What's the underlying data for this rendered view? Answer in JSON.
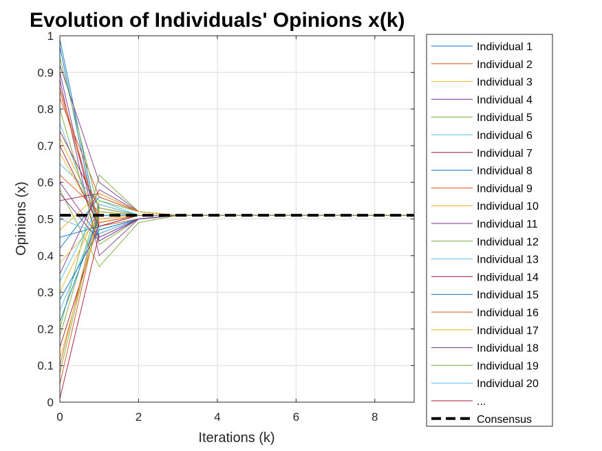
{
  "chart_data": {
    "type": "line",
    "title": "Evolution of Individuals' Opinions x(k)",
    "xlabel": "Iterations (k)",
    "ylabel": "Opinions (x)",
    "xlim": [
      0,
      9
    ],
    "ylim": [
      0,
      1
    ],
    "xticks": [
      "0",
      "2",
      "4",
      "6",
      "8"
    ],
    "yticks": [
      "0",
      "0.1",
      "0.2",
      "0.3",
      "0.4",
      "0.5",
      "0.6",
      "0.7",
      "0.8",
      "0.9",
      "1"
    ],
    "grid": true,
    "legend_position": "outside-right",
    "consensus": {
      "name": "Consensus",
      "value": 0.51,
      "style": "dashed",
      "color": "#000000"
    },
    "legend_more": "...",
    "colors": [
      "#0072BD",
      "#D95319",
      "#EDB120",
      "#7E2F8E",
      "#77AC30",
      "#4DBEEE",
      "#A2142F"
    ],
    "series": [
      {
        "name": "Individual 1",
        "values": [
          0.99,
          0.47,
          0.5,
          0.51,
          0.51,
          0.51,
          0.51,
          0.51,
          0.51,
          0.51
        ]
      },
      {
        "name": "Individual 2",
        "values": [
          0.05,
          0.52,
          0.51,
          0.51,
          0.51,
          0.51,
          0.51,
          0.51,
          0.51,
          0.51
        ]
      },
      {
        "name": "Individual 3",
        "values": [
          0.72,
          0.5,
          0.51,
          0.51,
          0.51,
          0.51,
          0.51,
          0.51,
          0.51,
          0.51
        ]
      },
      {
        "name": "Individual 4",
        "values": [
          0.88,
          0.4,
          0.5,
          0.51,
          0.51,
          0.51,
          0.51,
          0.51,
          0.51,
          0.51
        ]
      },
      {
        "name": "Individual 5",
        "values": [
          0.2,
          0.62,
          0.52,
          0.51,
          0.51,
          0.51,
          0.51,
          0.51,
          0.51,
          0.51
        ]
      },
      {
        "name": "Individual 6",
        "values": [
          0.76,
          0.47,
          0.5,
          0.51,
          0.51,
          0.51,
          0.51,
          0.51,
          0.51,
          0.51
        ]
      },
      {
        "name": "Individual 7",
        "values": [
          0.15,
          0.49,
          0.51,
          0.51,
          0.51,
          0.51,
          0.51,
          0.51,
          0.51,
          0.51
        ]
      },
      {
        "name": "Individual 8",
        "values": [
          0.42,
          0.56,
          0.52,
          0.51,
          0.51,
          0.51,
          0.51,
          0.51,
          0.51,
          0.51
        ]
      },
      {
        "name": "Individual 9",
        "values": [
          0.85,
          0.48,
          0.5,
          0.51,
          0.51,
          0.51,
          0.51,
          0.51,
          0.51,
          0.51
        ]
      },
      {
        "name": "Individual 10",
        "values": [
          0.3,
          0.53,
          0.51,
          0.51,
          0.51,
          0.51,
          0.51,
          0.51,
          0.51,
          0.51
        ]
      },
      {
        "name": "Individual 11",
        "values": [
          0.92,
          0.6,
          0.52,
          0.51,
          0.51,
          0.51,
          0.51,
          0.51,
          0.51,
          0.51
        ]
      },
      {
        "name": "Individual 12",
        "values": [
          0.58,
          0.37,
          0.49,
          0.51,
          0.51,
          0.51,
          0.51,
          0.51,
          0.51,
          0.51
        ]
      },
      {
        "name": "Individual 13",
        "values": [
          0.65,
          0.55,
          0.51,
          0.51,
          0.51,
          0.51,
          0.51,
          0.51,
          0.51,
          0.51
        ]
      },
      {
        "name": "Individual 14",
        "values": [
          0.01,
          0.46,
          0.5,
          0.51,
          0.51,
          0.51,
          0.51,
          0.51,
          0.51,
          0.51
        ]
      },
      {
        "name": "Individual 15",
        "values": [
          0.97,
          0.45,
          0.5,
          0.51,
          0.51,
          0.51,
          0.51,
          0.51,
          0.51,
          0.51
        ]
      },
      {
        "name": "Individual 16",
        "values": [
          0.1,
          0.54,
          0.51,
          0.51,
          0.51,
          0.51,
          0.51,
          0.51,
          0.51,
          0.51
        ]
      },
      {
        "name": "Individual 17",
        "values": [
          0.68,
          0.49,
          0.51,
          0.51,
          0.51,
          0.51,
          0.51,
          0.51,
          0.51,
          0.51
        ]
      },
      {
        "name": "Individual 18",
        "values": [
          0.35,
          0.58,
          0.52,
          0.51,
          0.51,
          0.51,
          0.51,
          0.51,
          0.51,
          0.51
        ]
      },
      {
        "name": "Individual 19",
        "values": [
          0.8,
          0.43,
          0.5,
          0.51,
          0.51,
          0.51,
          0.51,
          0.51,
          0.51,
          0.51
        ]
      },
      {
        "name": "Individual 20",
        "values": [
          0.25,
          0.51,
          0.51,
          0.51,
          0.51,
          0.51,
          0.51,
          0.51,
          0.51,
          0.51
        ]
      },
      {
        "name": "...",
        "values": [
          0.55,
          0.57,
          0.52,
          0.51,
          0.51,
          0.51,
          0.51,
          0.51,
          0.51,
          0.51
        ]
      },
      {
        "values": [
          0.45,
          0.48,
          0.51,
          0.51,
          0.51,
          0.51,
          0.51,
          0.51,
          0.51,
          0.51
        ]
      },
      {
        "values": [
          0.62,
          0.52,
          0.51,
          0.51,
          0.51,
          0.51,
          0.51,
          0.51,
          0.51,
          0.51
        ]
      },
      {
        "values": [
          0.38,
          0.5,
          0.51,
          0.51,
          0.51,
          0.51,
          0.51,
          0.51,
          0.51,
          0.51
        ]
      },
      {
        "values": [
          0.9,
          0.44,
          0.5,
          0.51,
          0.51,
          0.51,
          0.51,
          0.51,
          0.51,
          0.51
        ]
      },
      {
        "values": [
          0.18,
          0.55,
          0.52,
          0.51,
          0.51,
          0.51,
          0.51,
          0.51,
          0.51,
          0.51
        ]
      },
      {
        "values": [
          0.5,
          0.46,
          0.5,
          0.51,
          0.51,
          0.51,
          0.51,
          0.51,
          0.51,
          0.51
        ]
      },
      {
        "values": [
          0.74,
          0.53,
          0.51,
          0.51,
          0.51,
          0.51,
          0.51,
          0.51,
          0.51,
          0.51
        ]
      },
      {
        "values": [
          0.28,
          0.47,
          0.5,
          0.51,
          0.51,
          0.51,
          0.51,
          0.51,
          0.51,
          0.51
        ]
      },
      {
        "values": [
          0.83,
          0.56,
          0.52,
          0.51,
          0.51,
          0.51,
          0.51,
          0.51,
          0.51,
          0.51
        ]
      },
      {
        "values": [
          0.12,
          0.5,
          0.51,
          0.51,
          0.51,
          0.51,
          0.51,
          0.51,
          0.51,
          0.51
        ]
      },
      {
        "values": [
          0.6,
          0.45,
          0.5,
          0.51,
          0.51,
          0.51,
          0.51,
          0.51,
          0.51,
          0.51
        ]
      },
      {
        "values": [
          0.94,
          0.52,
          0.51,
          0.51,
          0.51,
          0.51,
          0.51,
          0.51,
          0.51,
          0.51
        ]
      },
      {
        "values": [
          0.33,
          0.54,
          0.51,
          0.51,
          0.51,
          0.51,
          0.51,
          0.51,
          0.51,
          0.51
        ]
      },
      {
        "values": [
          0.7,
          0.48,
          0.51,
          0.51,
          0.51,
          0.51,
          0.51,
          0.51,
          0.51,
          0.51
        ]
      },
      {
        "values": [
          0.22,
          0.51,
          0.51,
          0.51,
          0.51,
          0.51,
          0.51,
          0.51,
          0.51,
          0.51
        ]
      },
      {
        "values": [
          0.86,
          0.49,
          0.51,
          0.51,
          0.51,
          0.51,
          0.51,
          0.51,
          0.51,
          0.51
        ]
      },
      {
        "values": [
          0.47,
          0.57,
          0.52,
          0.51,
          0.51,
          0.51,
          0.51,
          0.51,
          0.51,
          0.51
        ]
      },
      {
        "values": [
          0.57,
          0.44,
          0.5,
          0.51,
          0.51,
          0.51,
          0.51,
          0.51,
          0.51,
          0.51
        ]
      },
      {
        "values": [
          0.08,
          0.53,
          0.51,
          0.51,
          0.51,
          0.51,
          0.51,
          0.51,
          0.51,
          0.51
        ]
      }
    ]
  }
}
